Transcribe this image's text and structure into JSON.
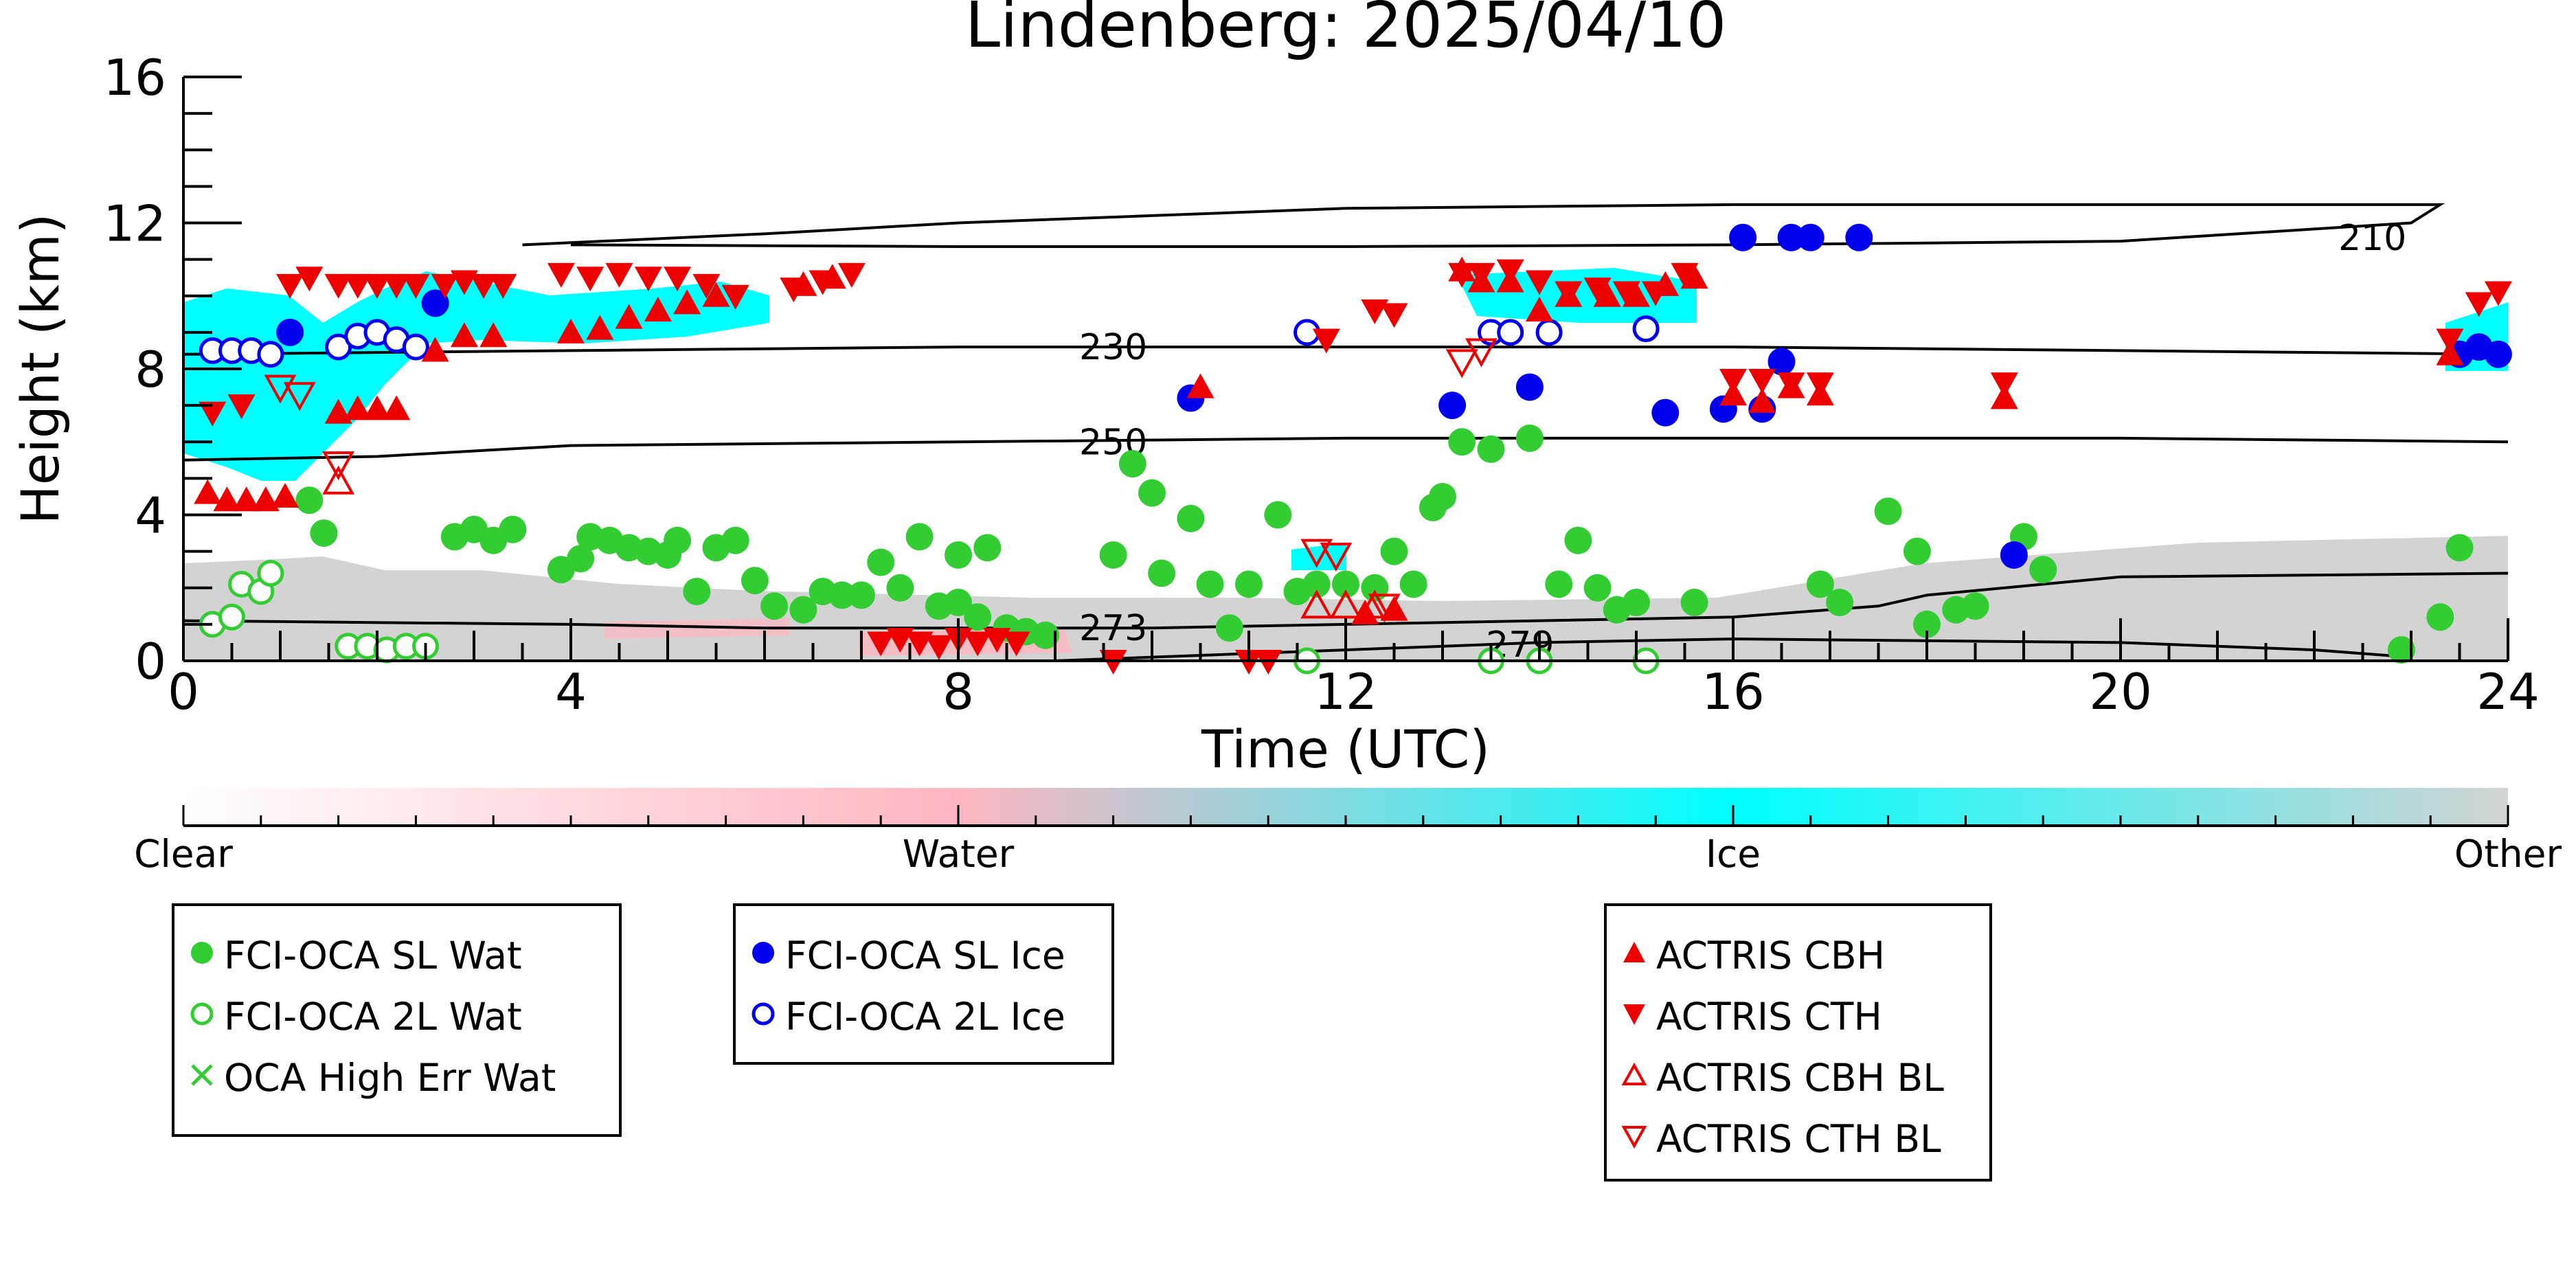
{
  "chart_data": {
    "type": "scatter",
    "title": "Lindenberg: 2025/04/10",
    "xlabel": "Time (UTC)",
    "ylabel": "Height (km)",
    "xlim": [
      0,
      24
    ],
    "ylim": [
      0,
      16
    ],
    "xticks": [
      0,
      4,
      8,
      12,
      16,
      20,
      24
    ],
    "yticks": [
      0,
      4,
      8,
      12,
      16
    ],
    "background_classification": {
      "description": "cloud phase classification",
      "colorbar_labels": [
        "Clear",
        "Water",
        "Ice",
        "Other"
      ],
      "colors": {
        "clear": "#ffffff",
        "water": "#ffb6c1",
        "ice": "#00ffff",
        "other": "#d3d3d3"
      }
    },
    "contours": [
      {
        "label": "210",
        "points": [
          [
            3.5,
            11.4
          ],
          [
            6,
            11.7
          ],
          [
            8,
            12.0
          ],
          [
            10,
            12.2
          ],
          [
            12,
            12.4
          ],
          [
            16,
            12.5
          ],
          [
            20,
            12.5
          ],
          [
            23.3,
            12.5
          ],
          [
            23.0,
            12.0
          ],
          [
            20,
            11.5
          ],
          [
            16,
            11.4
          ],
          [
            12,
            11.35
          ],
          [
            8,
            11.35
          ],
          [
            4,
            11.4
          ]
        ]
      },
      {
        "label": "230",
        "points": [
          [
            0,
            8.4
          ],
          [
            4,
            8.5
          ],
          [
            8,
            8.6
          ],
          [
            12,
            8.6
          ],
          [
            16,
            8.6
          ],
          [
            20,
            8.5
          ],
          [
            24,
            8.4
          ]
        ]
      },
      {
        "label": "250",
        "points": [
          [
            0,
            5.5
          ],
          [
            2,
            5.6
          ],
          [
            4,
            5.9
          ],
          [
            8,
            6.0
          ],
          [
            12,
            6.1
          ],
          [
            16,
            6.1
          ],
          [
            20,
            6.1
          ],
          [
            24,
            6.0
          ]
        ]
      },
      {
        "label": "273",
        "points": [
          [
            0,
            1.1
          ],
          [
            4,
            1.0
          ],
          [
            6,
            0.9
          ],
          [
            8,
            0.9
          ],
          [
            10,
            0.9
          ],
          [
            12,
            1.0
          ],
          [
            16,
            1.2
          ],
          [
            17.5,
            1.5
          ],
          [
            18,
            1.8
          ],
          [
            20,
            2.3
          ],
          [
            24,
            2.4
          ]
        ]
      },
      {
        "label": "279",
        "points": [
          [
            9,
            0.0
          ],
          [
            12,
            0.3
          ],
          [
            14,
            0.5
          ],
          [
            16,
            0.6
          ],
          [
            20,
            0.5
          ],
          [
            22,
            0.3
          ],
          [
            23,
            0.1
          ]
        ]
      }
    ],
    "series": [
      {
        "name": "FCI-OCA SL Wat",
        "marker": "filled-circle",
        "color": "#33cc33",
        "points": [
          [
            1.3,
            4.4
          ],
          [
            1.45,
            3.5
          ],
          [
            2.8,
            3.4
          ],
          [
            3.0,
            3.6
          ],
          [
            3.2,
            3.3
          ],
          [
            3.4,
            3.6
          ],
          [
            3.9,
            2.5
          ],
          [
            4.1,
            2.8
          ],
          [
            4.2,
            3.4
          ],
          [
            4.4,
            3.3
          ],
          [
            4.6,
            3.1
          ],
          [
            4.8,
            3.0
          ],
          [
            5.0,
            2.9
          ],
          [
            5.1,
            3.3
          ],
          [
            5.3,
            1.9
          ],
          [
            5.5,
            3.1
          ],
          [
            5.7,
            3.3
          ],
          [
            5.9,
            2.2
          ],
          [
            6.1,
            1.5
          ],
          [
            6.4,
            1.4
          ],
          [
            6.6,
            1.9
          ],
          [
            6.8,
            1.8
          ],
          [
            7.0,
            1.8
          ],
          [
            7.2,
            2.7
          ],
          [
            7.4,
            2.0
          ],
          [
            7.6,
            3.4
          ],
          [
            7.8,
            1.5
          ],
          [
            8.0,
            1.6
          ],
          [
            8.2,
            1.2
          ],
          [
            8.5,
            0.9
          ],
          [
            8.7,
            0.8
          ],
          [
            8.9,
            0.7
          ],
          [
            8.0,
            2.9
          ],
          [
            8.3,
            3.1
          ],
          [
            9.6,
            2.9
          ],
          [
            9.8,
            5.4
          ],
          [
            10.0,
            4.6
          ],
          [
            10.1,
            2.4
          ],
          [
            10.4,
            3.9
          ],
          [
            10.6,
            2.1
          ],
          [
            10.8,
            0.9
          ],
          [
            11.0,
            2.1
          ],
          [
            11.3,
            4.0
          ],
          [
            11.5,
            1.9
          ],
          [
            11.7,
            2.1
          ],
          [
            12.0,
            2.1
          ],
          [
            12.3,
            2.0
          ],
          [
            12.5,
            3.0
          ],
          [
            12.7,
            2.1
          ],
          [
            12.9,
            4.2
          ],
          [
            13.0,
            4.5
          ],
          [
            13.2,
            6.0
          ],
          [
            13.5,
            5.8
          ],
          [
            13.9,
            6.1
          ],
          [
            14.2,
            2.1
          ],
          [
            14.4,
            3.3
          ],
          [
            14.6,
            2.0
          ],
          [
            14.8,
            1.4
          ],
          [
            15.0,
            1.6
          ],
          [
            15.6,
            1.6
          ],
          [
            16.9,
            2.1
          ],
          [
            17.1,
            1.6
          ],
          [
            17.6,
            4.1
          ],
          [
            17.9,
            3.0
          ],
          [
            18.0,
            1.0
          ],
          [
            18.3,
            1.4
          ],
          [
            18.5,
            1.5
          ],
          [
            19.0,
            3.4
          ],
          [
            19.2,
            2.5
          ],
          [
            22.9,
            0.3
          ],
          [
            23.3,
            1.2
          ],
          [
            23.5,
            3.1
          ]
        ]
      },
      {
        "name": "FCI-OCA 2L Wat",
        "marker": "open-circle",
        "color": "#33cc33",
        "points": [
          [
            0.3,
            1.0
          ],
          [
            0.5,
            1.2
          ],
          [
            0.6,
            2.1
          ],
          [
            0.8,
            1.9
          ],
          [
            0.9,
            2.4
          ],
          [
            1.7,
            0.4
          ],
          [
            1.9,
            0.4
          ],
          [
            2.1,
            0.3
          ],
          [
            2.3,
            0.4
          ],
          [
            2.5,
            0.4
          ],
          [
            11.6,
            0.0
          ],
          [
            13.5,
            0.0
          ],
          [
            14.0,
            0.0
          ],
          [
            15.1,
            0.0
          ]
        ]
      },
      {
        "name": "OCA High Err Wat",
        "marker": "x",
        "color": "#33cc33",
        "points": []
      },
      {
        "name": "FCI-OCA SL Ice",
        "marker": "filled-circle",
        "color": "#0000ee",
        "points": [
          [
            1.1,
            9.0
          ],
          [
            2.6,
            9.8
          ],
          [
            10.4,
            7.2
          ],
          [
            13.1,
            7.0
          ],
          [
            13.9,
            7.5
          ],
          [
            15.3,
            6.8
          ],
          [
            15.9,
            6.9
          ],
          [
            16.1,
            11.6
          ],
          [
            16.3,
            6.9
          ],
          [
            16.5,
            8.2
          ],
          [
            16.6,
            11.6
          ],
          [
            16.8,
            11.6
          ],
          [
            17.3,
            11.6
          ],
          [
            18.9,
            2.9
          ],
          [
            23.5,
            8.4
          ],
          [
            23.7,
            8.6
          ],
          [
            23.9,
            8.4
          ]
        ]
      },
      {
        "name": "FCI-OCA 2L Ice",
        "marker": "open-circle",
        "color": "#0000ee",
        "points": [
          [
            0.3,
            8.5
          ],
          [
            0.5,
            8.5
          ],
          [
            0.7,
            8.5
          ],
          [
            0.9,
            8.4
          ],
          [
            1.6,
            8.6
          ],
          [
            1.8,
            8.9
          ],
          [
            2.0,
            9.0
          ],
          [
            2.2,
            8.8
          ],
          [
            2.4,
            8.6
          ],
          [
            11.6,
            9.0
          ],
          [
            13.5,
            9.0
          ],
          [
            13.7,
            9.0
          ],
          [
            14.1,
            9.0
          ],
          [
            15.1,
            9.1
          ]
        ]
      },
      {
        "name": "ACTRIS CBH",
        "marker": "filled-triangle-up",
        "color": "#ee0000",
        "points": [
          [
            0.25,
            4.6
          ],
          [
            0.45,
            4.4
          ],
          [
            0.65,
            4.4
          ],
          [
            0.85,
            4.4
          ],
          [
            1.05,
            4.5
          ],
          [
            1.6,
            6.8
          ],
          [
            1.8,
            6.9
          ],
          [
            2.0,
            6.9
          ],
          [
            2.2,
            6.9
          ],
          [
            2.6,
            8.5
          ],
          [
            2.9,
            8.9
          ],
          [
            3.2,
            8.9
          ],
          [
            4.0,
            9.0
          ],
          [
            4.3,
            9.1
          ],
          [
            4.6,
            9.4
          ],
          [
            4.9,
            9.6
          ],
          [
            5.2,
            9.8
          ],
          [
            5.5,
            10.0
          ],
          [
            6.4,
            10.3
          ],
          [
            6.7,
            10.5
          ],
          [
            10.5,
            7.5
          ],
          [
            12.2,
            1.3
          ],
          [
            12.5,
            1.4
          ],
          [
            13.2,
            10.7
          ],
          [
            13.4,
            10.4
          ],
          [
            13.7,
            10.4
          ],
          [
            14.0,
            9.6
          ],
          [
            14.3,
            10.0
          ],
          [
            14.7,
            10.0
          ],
          [
            15.0,
            10.0
          ],
          [
            15.3,
            10.3
          ],
          [
            15.6,
            10.5
          ],
          [
            16.0,
            7.3
          ],
          [
            16.3,
            7.1
          ],
          [
            16.6,
            7.5
          ],
          [
            16.9,
            7.3
          ],
          [
            18.8,
            7.2
          ],
          [
            23.4,
            8.4
          ]
        ]
      },
      {
        "name": "ACTRIS CTH",
        "marker": "filled-triangle-down",
        "color": "#ee0000",
        "points": [
          [
            0.3,
            6.8
          ],
          [
            0.6,
            7.0
          ],
          [
            1.1,
            10.3
          ],
          [
            1.3,
            10.5
          ],
          [
            1.6,
            10.3
          ],
          [
            1.8,
            10.3
          ],
          [
            2.0,
            10.3
          ],
          [
            2.2,
            10.3
          ],
          [
            2.4,
            10.3
          ],
          [
            2.7,
            10.3
          ],
          [
            2.9,
            10.4
          ],
          [
            3.1,
            10.3
          ],
          [
            3.3,
            10.3
          ],
          [
            3.9,
            10.6
          ],
          [
            4.2,
            10.5
          ],
          [
            4.5,
            10.6
          ],
          [
            4.8,
            10.5
          ],
          [
            5.1,
            10.5
          ],
          [
            5.4,
            10.3
          ],
          [
            5.7,
            10.0
          ],
          [
            6.3,
            10.2
          ],
          [
            6.6,
            10.4
          ],
          [
            6.9,
            10.6
          ],
          [
            7.2,
            0.5
          ],
          [
            7.4,
            0.6
          ],
          [
            7.6,
            0.5
          ],
          [
            7.8,
            0.4
          ],
          [
            8.0,
            0.6
          ],
          [
            8.2,
            0.5
          ],
          [
            8.4,
            0.6
          ],
          [
            8.6,
            0.5
          ],
          [
            9.6,
            0.0
          ],
          [
            11.0,
            0.0
          ],
          [
            11.2,
            0.0
          ],
          [
            11.8,
            8.8
          ],
          [
            12.3,
            9.6
          ],
          [
            12.5,
            9.5
          ],
          [
            13.2,
            10.6
          ],
          [
            13.4,
            10.6
          ],
          [
            13.7,
            10.7
          ],
          [
            14.0,
            10.4
          ],
          [
            14.3,
            10.1
          ],
          [
            14.6,
            10.2
          ],
          [
            14.9,
            10.1
          ],
          [
            15.2,
            10.1
          ],
          [
            15.5,
            10.6
          ],
          [
            16.0,
            7.7
          ],
          [
            16.3,
            7.7
          ],
          [
            16.6,
            7.6
          ],
          [
            16.9,
            7.6
          ],
          [
            18.8,
            7.6
          ],
          [
            23.4,
            8.8
          ],
          [
            23.7,
            9.8
          ],
          [
            23.9,
            10.1
          ]
        ]
      },
      {
        "name": "ACTRIS CBH BL",
        "marker": "open-triangle-up",
        "color": "#ee0000",
        "points": [
          [
            1.6,
            4.9
          ],
          [
            11.7,
            1.5
          ],
          [
            12.0,
            1.5
          ],
          [
            12.3,
            1.5
          ]
        ]
      },
      {
        "name": "ACTRIS CTH BL",
        "marker": "open-triangle-down",
        "color": "#ee0000",
        "points": [
          [
            1.0,
            7.5
          ],
          [
            1.2,
            7.3
          ],
          [
            1.6,
            5.4
          ],
          [
            11.7,
            3.0
          ],
          [
            11.9,
            2.9
          ],
          [
            12.4,
            1.5
          ],
          [
            13.2,
            8.2
          ],
          [
            13.4,
            8.5
          ]
        ]
      }
    ],
    "legends": [
      {
        "entries": [
          "FCI-OCA SL Wat",
          "FCI-OCA 2L Wat",
          "OCA High Err Wat"
        ]
      },
      {
        "entries": [
          "FCI-OCA SL Ice",
          "FCI-OCA 2L Ice"
        ]
      },
      {
        "entries": [
          "ACTRIS CBH",
          "ACTRIS CTH",
          "ACTRIS CBH BL",
          "ACTRIS CTH BL"
        ]
      }
    ]
  }
}
